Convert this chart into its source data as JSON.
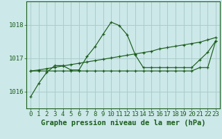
{
  "background_color": "#cce8e8",
  "grid_color": "#aacccc",
  "line_color": "#1a5c1a",
  "title": "Graphe pression niveau de la mer (hPa)",
  "xlim": [
    -0.5,
    23.5
  ],
  "ylim": [
    1015.5,
    1018.7
  ],
  "yticks": [
    1016,
    1017,
    1018
  ],
  "xticks": [
    0,
    1,
    2,
    3,
    4,
    5,
    6,
    7,
    8,
    9,
    10,
    11,
    12,
    13,
    14,
    15,
    16,
    17,
    18,
    19,
    20,
    21,
    22,
    23
  ],
  "series1_y": [
    1015.85,
    1016.25,
    1016.58,
    1016.78,
    1016.78,
    1016.65,
    1016.65,
    1017.05,
    1017.35,
    1017.72,
    1018.08,
    1017.98,
    1017.7,
    1017.1,
    1016.72,
    1016.72,
    1016.72,
    1016.72,
    1016.72,
    1016.72,
    1016.72,
    1016.95,
    1017.18,
    1017.52
  ],
  "series2_y": [
    1016.62,
    1016.62,
    1016.62,
    1016.62,
    1016.62,
    1016.62,
    1016.62,
    1016.62,
    1016.62,
    1016.62,
    1016.62,
    1016.62,
    1016.62,
    1016.62,
    1016.62,
    1016.62,
    1016.62,
    1016.62,
    1016.62,
    1016.62,
    1016.62,
    1016.72,
    1016.72,
    1017.52
  ],
  "series3_y": [
    1016.62,
    1016.65,
    1016.69,
    1016.73,
    1016.77,
    1016.81,
    1016.85,
    1016.89,
    1016.93,
    1016.97,
    1017.01,
    1017.05,
    1017.09,
    1017.13,
    1017.17,
    1017.21,
    1017.28,
    1017.32,
    1017.36,
    1017.4,
    1017.44,
    1017.48,
    1017.55,
    1017.62
  ],
  "title_fontsize": 7.5,
  "tick_fontsize": 6.5
}
